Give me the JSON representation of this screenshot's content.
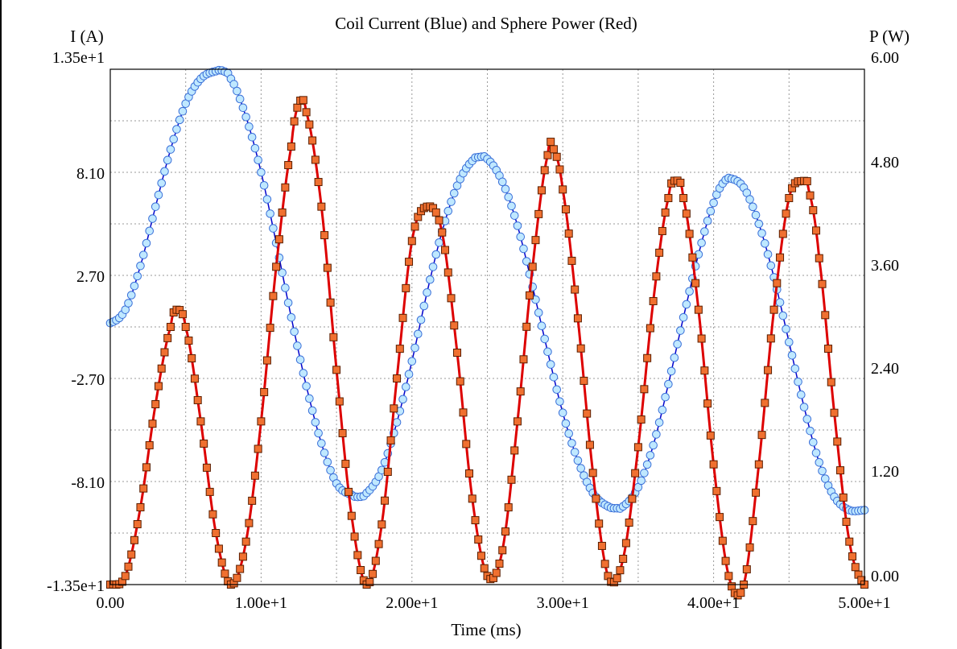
{
  "chart_data": {
    "type": "line",
    "title": "Coil Current (Blue) and Sphere Power (Red)",
    "xlabel": "Time (ms)",
    "ylabel_left": "I (A)",
    "ylabel_right": "P (W)",
    "xlim": [
      0,
      50
    ],
    "ylim_left": [
      -13.5,
      13.5
    ],
    "ylim_right": [
      0,
      6
    ],
    "grid": true,
    "x_ticks": [
      "0.00",
      "1.00e+1",
      "2.00e+1",
      "3.00e+1",
      "4.00e+1",
      "5.00e+1"
    ],
    "y_left_ticks": [
      "1.35e+1",
      "8.10",
      "2.70",
      "-2.70",
      "-8.10",
      "-1.35e+1"
    ],
    "y_right_ticks": [
      "6.00",
      "4.80",
      "3.60",
      "2.40",
      "1.20",
      "0.00"
    ],
    "series": [
      {
        "name": "Coil Current",
        "axis": "left",
        "color": "#0000cc",
        "marker_fill": "#bfe8ff",
        "marker_stroke": "#3a6fd8",
        "marker": "circle",
        "x": [
          0,
          1,
          2,
          3,
          4,
          5,
          6,
          7,
          7.5,
          8,
          9,
          10,
          11,
          12,
          13,
          14,
          15,
          16,
          16.5,
          17,
          18,
          19,
          20,
          21,
          22,
          23,
          24,
          24.5,
          25,
          26,
          27,
          28,
          29,
          30,
          31,
          32,
          33,
          33.7,
          34,
          35,
          36,
          37,
          38,
          39,
          40,
          40.8,
          41,
          42,
          43,
          44,
          45,
          46,
          47,
          48,
          49,
          50
        ],
        "y": [
          0.2,
          0.9,
          3.2,
          6.3,
          9.3,
          11.7,
          13.0,
          13.4,
          13.4,
          13.0,
          11.0,
          8.1,
          4.4,
          0.5,
          -3.1,
          -6.1,
          -8.2,
          -8.8,
          -8.9,
          -8.7,
          -7.5,
          -5.0,
          -1.8,
          1.8,
          5.0,
          7.4,
          8.7,
          8.9,
          8.8,
          7.6,
          5.3,
          2.1,
          -1.3,
          -4.5,
          -7.0,
          -8.7,
          -9.4,
          -9.5,
          -9.4,
          -8.4,
          -6.2,
          -3.0,
          0.5,
          3.8,
          6.5,
          7.7,
          7.8,
          7.3,
          5.4,
          2.6,
          -0.8,
          -4.2,
          -7.1,
          -8.9,
          -9.6,
          -9.6
        ]
      },
      {
        "name": "Sphere Power",
        "axis": "right",
        "color": "#dd0000",
        "marker_fill": "#f07030",
        "marker_stroke": "#5a1e00",
        "marker": "square",
        "x": [
          0,
          1,
          2,
          3,
          4,
          4.4,
          5,
          6,
          7,
          8,
          9,
          10,
          11,
          12,
          12.5,
          13,
          14,
          15,
          16,
          17,
          18,
          19,
          20,
          21,
          22,
          23,
          24,
          25,
          26,
          27,
          28,
          29,
          29.3,
          30,
          31,
          32,
          33,
          34,
          35,
          36,
          37,
          37.5,
          38,
          39,
          40,
          41,
          42,
          43,
          44,
          45,
          46,
          46.3,
          47,
          48,
          49,
          50
        ],
        "y": [
          0.0,
          0.1,
          0.9,
          2.1,
          3.0,
          3.2,
          3.0,
          1.9,
          0.6,
          0.0,
          0.5,
          1.9,
          3.7,
          5.1,
          5.6,
          5.5,
          4.4,
          2.5,
          0.8,
          0.0,
          0.7,
          2.4,
          4.0,
          4.4,
          4.1,
          2.7,
          1.0,
          0.1,
          0.4,
          1.9,
          3.7,
          5.0,
          5.1,
          4.6,
          3.1,
          1.3,
          0.1,
          0.3,
          1.6,
          3.3,
          4.5,
          4.7,
          4.5,
          3.2,
          1.4,
          0.1,
          0.0,
          1.4,
          3.2,
          4.5,
          4.7,
          4.6,
          3.8,
          2.0,
          0.5,
          0.0
        ]
      }
    ]
  }
}
